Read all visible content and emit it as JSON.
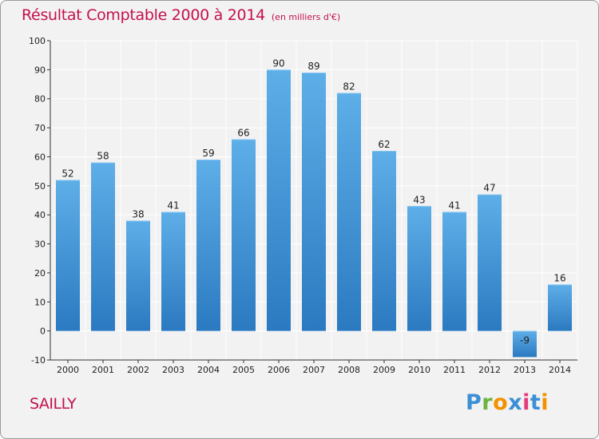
{
  "header": {
    "title": "Résultat Comptable 2000 à 2014",
    "unit": "(en milliers d'€)"
  },
  "footer": {
    "place": "SAILLY",
    "logo": {
      "text": "Proxiti",
      "letter_colors": [
        "#3b8fd6",
        "#6cb33f",
        "#f39200",
        "#3b8fd6",
        "#e53b7b",
        "#3b8fd6",
        "#f39200"
      ]
    }
  },
  "colors": {
    "bar_top": "#5eaee8",
    "bar_bottom": "#2b7ac1",
    "accent": "#c4104d",
    "grid": "#ffffff",
    "background": "#f2f2f2"
  },
  "chart_data": {
    "type": "bar",
    "title": "Résultat Comptable 2000 à 2014",
    "subtitle": "(en milliers d'€)",
    "xlabel": "",
    "ylabel": "",
    "categories": [
      "2000",
      "2001",
      "2002",
      "2003",
      "2004",
      "2005",
      "2006",
      "2007",
      "2008",
      "2009",
      "2010",
      "2011",
      "2012",
      "2013",
      "2014"
    ],
    "values": [
      52,
      58,
      38,
      41,
      59,
      66,
      90,
      89,
      82,
      62,
      43,
      41,
      47,
      -9,
      16
    ],
    "data_labels": [
      "52",
      "58",
      "38",
      "41",
      "59",
      "66",
      "90",
      "89",
      "82",
      "62",
      "43",
      "41",
      "47",
      "-9",
      "16"
    ],
    "ylim": [
      -10,
      100
    ],
    "yticks": [
      -10,
      0,
      10,
      20,
      30,
      40,
      50,
      60,
      70,
      80,
      90,
      100
    ],
    "grid": true,
    "legend": "none"
  }
}
